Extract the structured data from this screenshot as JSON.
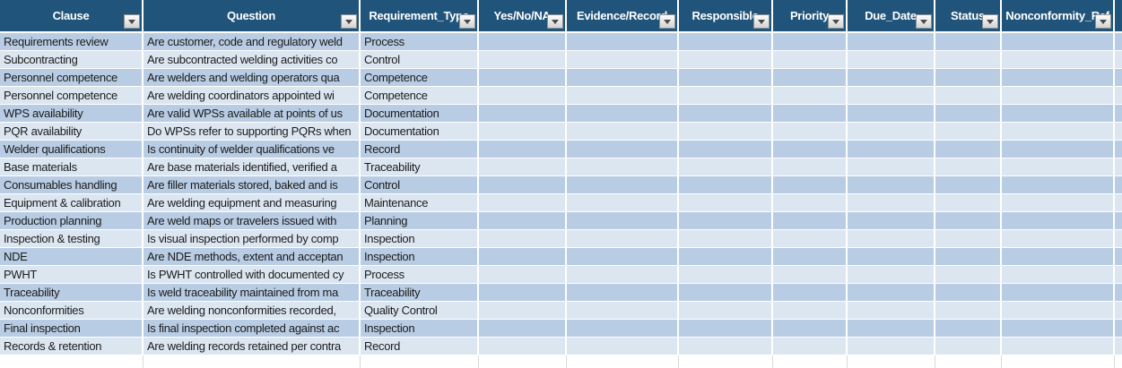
{
  "colors": {
    "header_bg": "#20547A",
    "band_dark": "#B8CCE4",
    "band_light": "#DCE6F1",
    "header_text": "#FFFFFF",
    "cell_text": "#1B1B1B"
  },
  "table": {
    "columns": [
      {
        "key": "clause",
        "label": "Clause",
        "filter": true
      },
      {
        "key": "question",
        "label": "Question",
        "filter": true
      },
      {
        "key": "requirement_type",
        "label": "Requirement_Type",
        "filter": true
      },
      {
        "key": "yes_no_na",
        "label": "Yes/No/NA",
        "filter": true
      },
      {
        "key": "evidence_record",
        "label": "Evidence/Record",
        "filter": true
      },
      {
        "key": "responsible",
        "label": "Responsible",
        "filter": true
      },
      {
        "key": "priority",
        "label": "Priority",
        "filter": true
      },
      {
        "key": "due_date",
        "label": "Due_Date",
        "filter": true
      },
      {
        "key": "status",
        "label": "Status",
        "filter": true
      },
      {
        "key": "nonconformity_ref",
        "label": "Nonconformity_Ref",
        "filter": true
      },
      {
        "key": "extra",
        "label": "",
        "filter": false
      }
    ],
    "rows": [
      {
        "clause": "Requirements review",
        "question": "Are customer, code and regulatory weld",
        "requirement_type": "Process",
        "yes_no_na": "",
        "evidence_record": "",
        "responsible": "",
        "priority": "",
        "due_date": "",
        "status": "",
        "nonconformity_ref": "",
        "extra": ""
      },
      {
        "clause": "Subcontracting",
        "question": "Are subcontracted welding activities co",
        "requirement_type": "Control",
        "yes_no_na": "",
        "evidence_record": "",
        "responsible": "",
        "priority": "",
        "due_date": "",
        "status": "",
        "nonconformity_ref": "",
        "extra": ""
      },
      {
        "clause": "Personnel competence",
        "question": "Are welders and welding operators qua",
        "requirement_type": "Competence",
        "yes_no_na": "",
        "evidence_record": "",
        "responsible": "",
        "priority": "",
        "due_date": "",
        "status": "",
        "nonconformity_ref": "",
        "extra": ""
      },
      {
        "clause": "Personnel competence",
        "question": "Are welding coordinators appointed wi",
        "requirement_type": "Competence",
        "yes_no_na": "",
        "evidence_record": "",
        "responsible": "",
        "priority": "",
        "due_date": "",
        "status": "",
        "nonconformity_ref": "",
        "extra": ""
      },
      {
        "clause": "WPS availability",
        "question": "Are valid WPSs available at points of us",
        "requirement_type": "Documentation",
        "yes_no_na": "",
        "evidence_record": "",
        "responsible": "",
        "priority": "",
        "due_date": "",
        "status": "",
        "nonconformity_ref": "",
        "extra": ""
      },
      {
        "clause": "PQR availability",
        "question": "Do WPSs refer to supporting PQRs when",
        "requirement_type": "Documentation",
        "yes_no_na": "",
        "evidence_record": "",
        "responsible": "",
        "priority": "",
        "due_date": "",
        "status": "",
        "nonconformity_ref": "",
        "extra": ""
      },
      {
        "clause": "Welder qualifications",
        "question": "Is continuity of welder qualifications ve",
        "requirement_type": "Record",
        "yes_no_na": "",
        "evidence_record": "",
        "responsible": "",
        "priority": "",
        "due_date": "",
        "status": "",
        "nonconformity_ref": "",
        "extra": ""
      },
      {
        "clause": "Base materials",
        "question": "Are base materials identified, verified a",
        "requirement_type": "Traceability",
        "yes_no_na": "",
        "evidence_record": "",
        "responsible": "",
        "priority": "",
        "due_date": "",
        "status": "",
        "nonconformity_ref": "",
        "extra": ""
      },
      {
        "clause": "Consumables handling",
        "question": "Are filler materials stored, baked and is",
        "requirement_type": "Control",
        "yes_no_na": "",
        "evidence_record": "",
        "responsible": "",
        "priority": "",
        "due_date": "",
        "status": "",
        "nonconformity_ref": "",
        "extra": ""
      },
      {
        "clause": "Equipment & calibration",
        "question": "Are welding equipment and measuring",
        "requirement_type": "Maintenance",
        "yes_no_na": "",
        "evidence_record": "",
        "responsible": "",
        "priority": "",
        "due_date": "",
        "status": "",
        "nonconformity_ref": "",
        "extra": ""
      },
      {
        "clause": "Production planning",
        "question": "Are weld maps or travelers issued with",
        "requirement_type": "Planning",
        "yes_no_na": "",
        "evidence_record": "",
        "responsible": "",
        "priority": "",
        "due_date": "",
        "status": "",
        "nonconformity_ref": "",
        "extra": ""
      },
      {
        "clause": "Inspection & testing",
        "question": "Is visual inspection performed by comp",
        "requirement_type": "Inspection",
        "yes_no_na": "",
        "evidence_record": "",
        "responsible": "",
        "priority": "",
        "due_date": "",
        "status": "",
        "nonconformity_ref": "",
        "extra": ""
      },
      {
        "clause": "NDE",
        "question": "Are NDE methods, extent and acceptan",
        "requirement_type": "Inspection",
        "yes_no_na": "",
        "evidence_record": "",
        "responsible": "",
        "priority": "",
        "due_date": "",
        "status": "",
        "nonconformity_ref": "",
        "extra": ""
      },
      {
        "clause": "PWHT",
        "question": "Is PWHT controlled with documented cy",
        "requirement_type": "Process",
        "yes_no_na": "",
        "evidence_record": "",
        "responsible": "",
        "priority": "",
        "due_date": "",
        "status": "",
        "nonconformity_ref": "",
        "extra": ""
      },
      {
        "clause": "Traceability",
        "question": "Is weld traceability maintained from ma",
        "requirement_type": "Traceability",
        "yes_no_na": "",
        "evidence_record": "",
        "responsible": "",
        "priority": "",
        "due_date": "",
        "status": "",
        "nonconformity_ref": "",
        "extra": ""
      },
      {
        "clause": "Nonconformities",
        "question": "Are welding nonconformities recorded,",
        "requirement_type": "Quality Control",
        "yes_no_na": "",
        "evidence_record": "",
        "responsible": "",
        "priority": "",
        "due_date": "",
        "status": "",
        "nonconformity_ref": "",
        "extra": ""
      },
      {
        "clause": "Final inspection",
        "question": "Is final inspection completed against ac",
        "requirement_type": "Inspection",
        "yes_no_na": "",
        "evidence_record": "",
        "responsible": "",
        "priority": "",
        "due_date": "",
        "status": "",
        "nonconformity_ref": "",
        "extra": ""
      },
      {
        "clause": "Records & retention",
        "question": "Are welding records retained per contra",
        "requirement_type": "Record",
        "yes_no_na": "",
        "evidence_record": "",
        "responsible": "",
        "priority": "",
        "due_date": "",
        "status": "",
        "nonconformity_ref": "",
        "extra": ""
      }
    ]
  }
}
